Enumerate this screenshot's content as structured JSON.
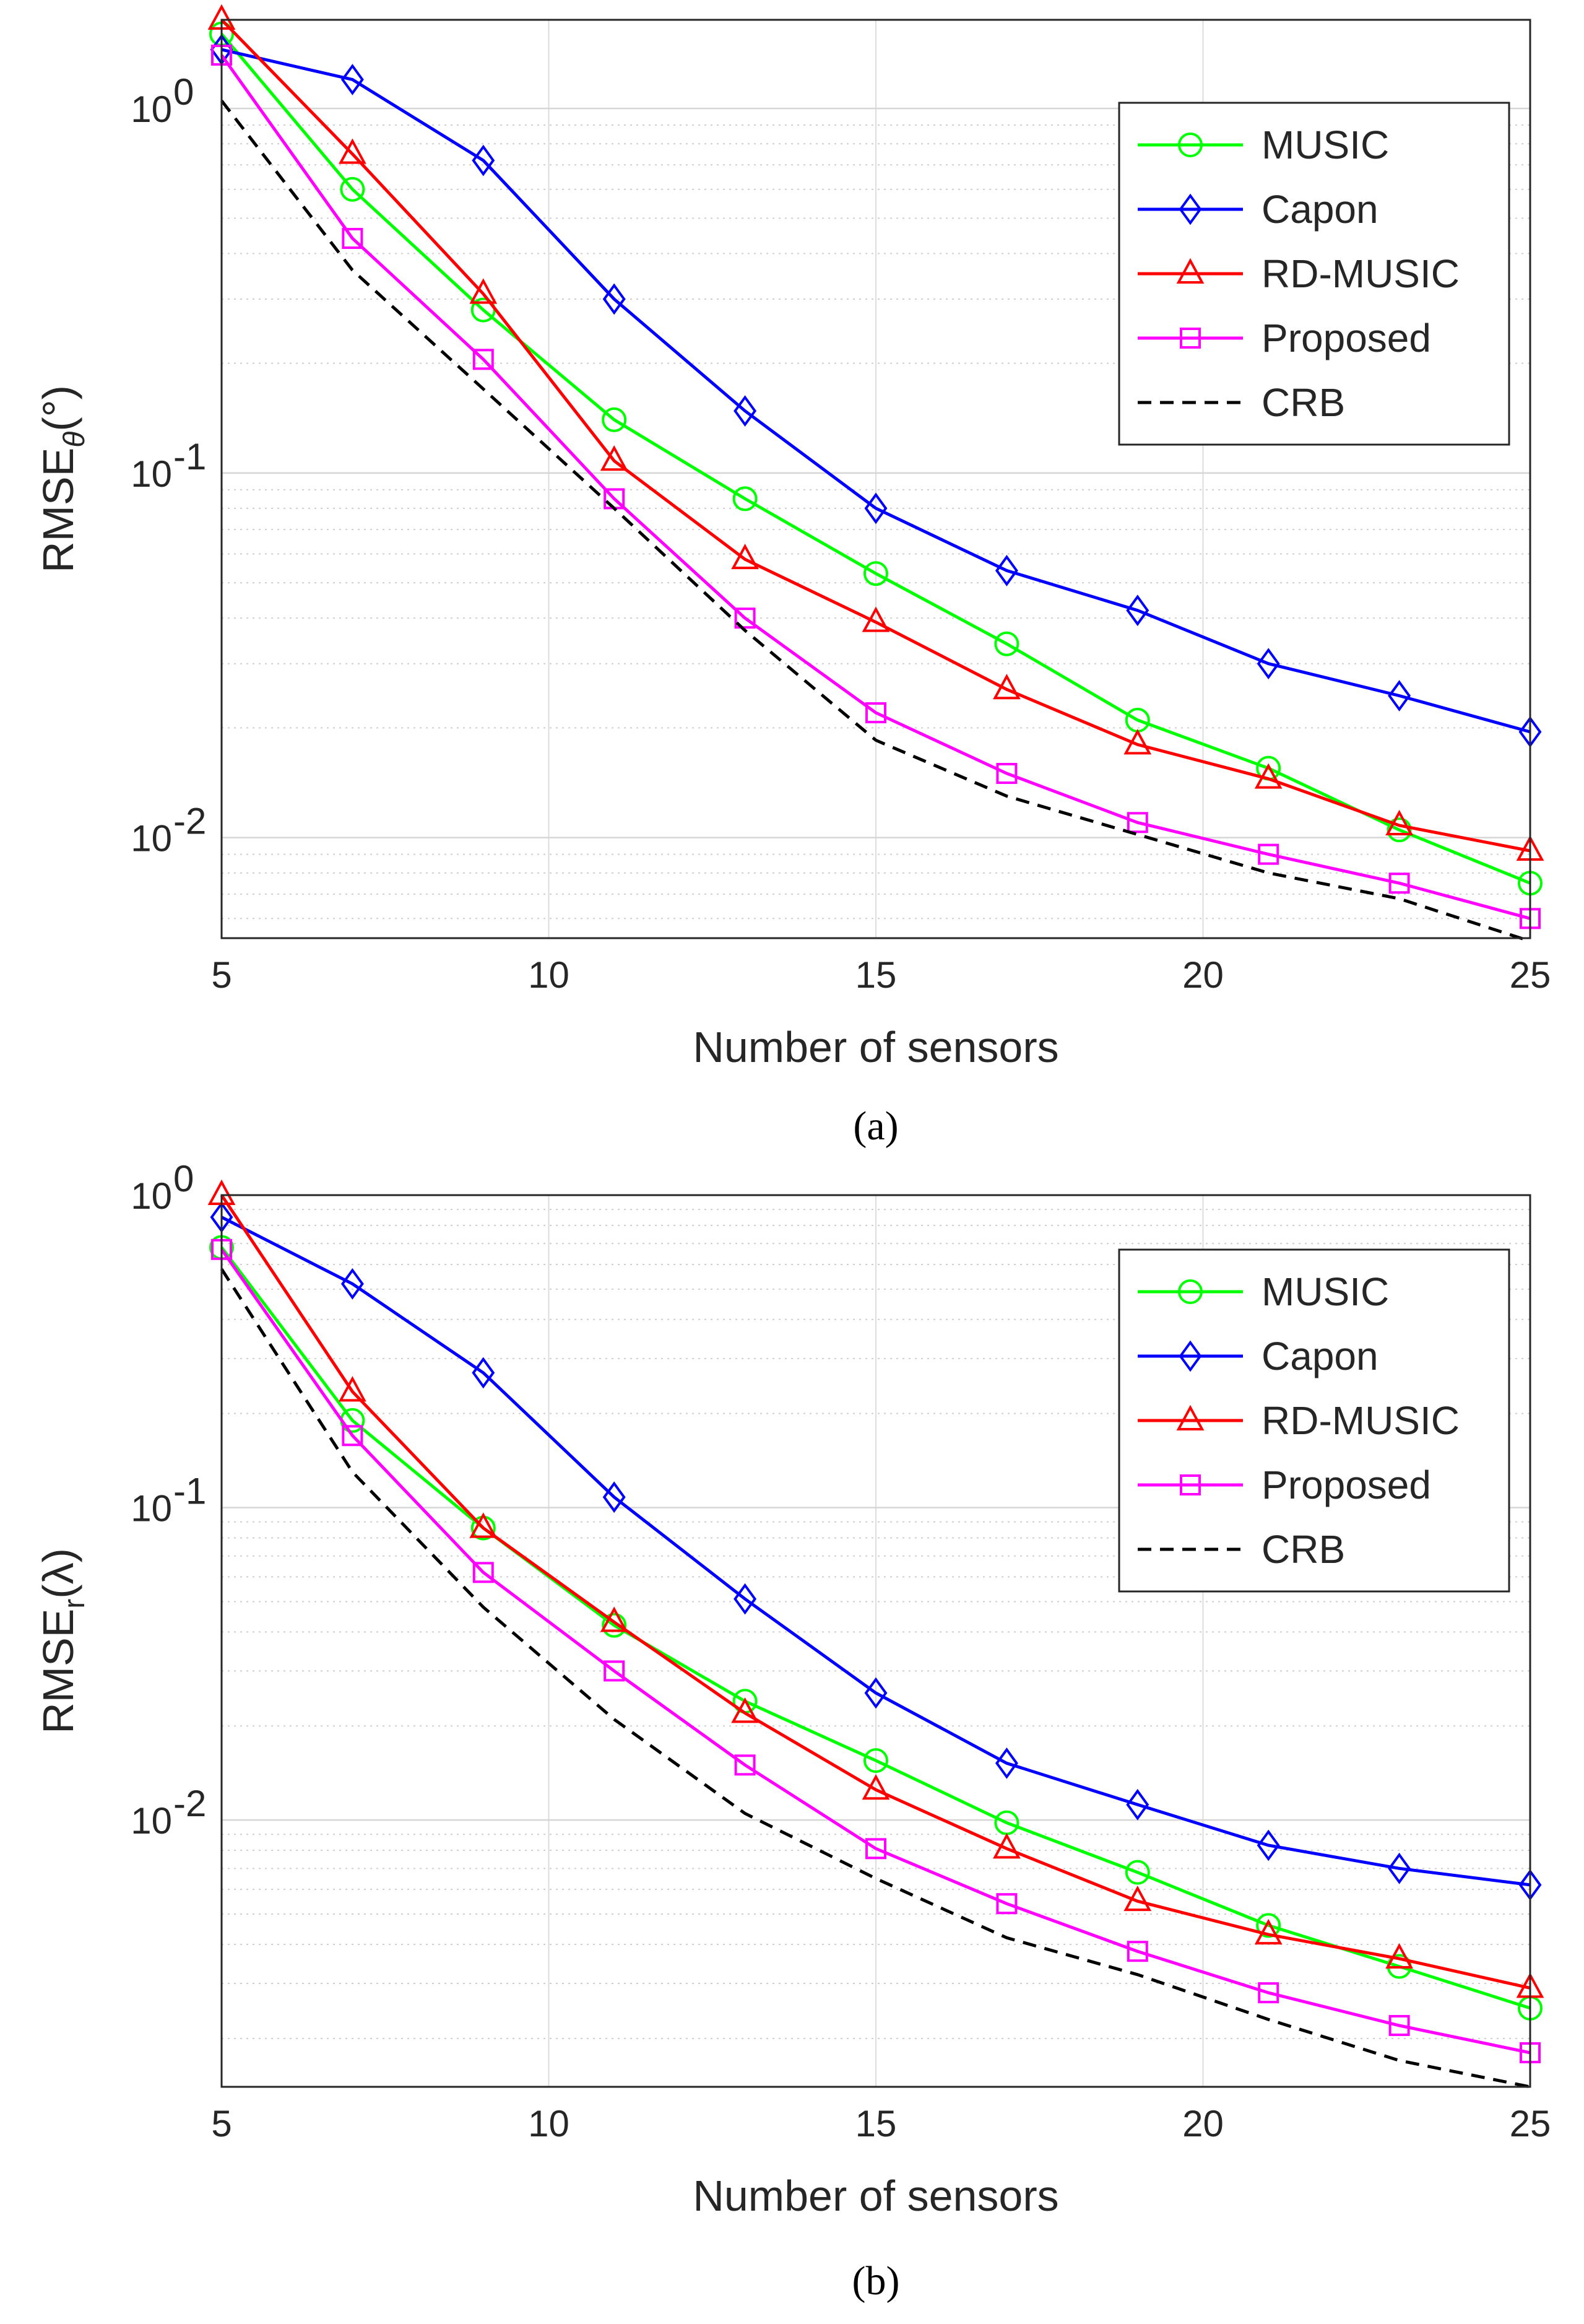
{
  "chart_data": [
    {
      "type": "line",
      "caption": "(a)",
      "xlabel": "Number of sensors",
      "ylabel_main": "RMSE",
      "ylabel_sub": "θ",
      "ylabel_unit": "(°)",
      "yscale": "log",
      "xlim": [
        5,
        25
      ],
      "ylim": [
        0.0053,
        1.75
      ],
      "xticks": [
        "5",
        "10",
        "15",
        "20",
        "25"
      ],
      "yticks": [
        {
          "base": "10",
          "exp": "-2"
        },
        {
          "base": "10",
          "exp": "-1"
        },
        {
          "base": "10",
          "exp": "0"
        }
      ],
      "grid": true,
      "legend_position": "top-right",
      "x": [
        5,
        7,
        9,
        11,
        13,
        15,
        17,
        19,
        21,
        23,
        25
      ],
      "series": [
        {
          "name": "MUSIC",
          "color": "#00ff00",
          "marker": "circle",
          "dash": "solid",
          "values": [
            1.6,
            0.6,
            0.28,
            0.14,
            0.085,
            0.053,
            0.034,
            0.021,
            0.0155,
            0.0105,
            0.0075
          ]
        },
        {
          "name": "Capon",
          "color": "#0000ff",
          "marker": "diamond",
          "dash": "solid",
          "values": [
            1.45,
            1.2,
            0.72,
            0.3,
            0.148,
            0.08,
            0.054,
            0.042,
            0.03,
            0.0245,
            0.0195
          ]
        },
        {
          "name": "RD-MUSIC",
          "color": "#ff0000",
          "marker": "triangle",
          "dash": "solid",
          "values": [
            1.75,
            0.75,
            0.31,
            0.108,
            0.058,
            0.039,
            0.0255,
            0.018,
            0.0145,
            0.0108,
            0.0092
          ]
        },
        {
          "name": "Proposed",
          "color": "#ff00ff",
          "marker": "square",
          "dash": "solid",
          "values": [
            1.4,
            0.44,
            0.205,
            0.085,
            0.04,
            0.022,
            0.015,
            0.011,
            0.009,
            0.0075,
            0.006
          ]
        },
        {
          "name": "CRB",
          "color": "#000000",
          "marker": "none",
          "dash": "dashed",
          "values": [
            1.05,
            0.36,
            0.17,
            0.08,
            0.037,
            0.0185,
            0.013,
            0.0102,
            0.008,
            0.0068,
            0.0052
          ]
        }
      ]
    },
    {
      "type": "line",
      "caption": "(b)",
      "xlabel": "Number of sensors",
      "ylabel_main": "RMSE",
      "ylabel_sub": "r",
      "ylabel_unit": "(λ)",
      "yscale": "log",
      "xlim": [
        5,
        25
      ],
      "ylim": [
        0.0014,
        1.0
      ],
      "xticks": [
        "5",
        "10",
        "15",
        "20",
        "25"
      ],
      "yticks": [
        {
          "base": "10",
          "exp": "-2"
        },
        {
          "base": "10",
          "exp": "-1"
        },
        {
          "base": "10",
          "exp": "0"
        }
      ],
      "grid": true,
      "legend_position": "top-right",
      "x": [
        5,
        7,
        9,
        11,
        13,
        15,
        17,
        19,
        21,
        23,
        25
      ],
      "series": [
        {
          "name": "MUSIC",
          "color": "#00ff00",
          "marker": "circle",
          "dash": "solid",
          "values": [
            0.68,
            0.19,
            0.086,
            0.042,
            0.024,
            0.0155,
            0.0098,
            0.0068,
            0.0046,
            0.0034,
            0.0025
          ]
        },
        {
          "name": "Capon",
          "color": "#0000ff",
          "marker": "diamond",
          "dash": "solid",
          "values": [
            0.85,
            0.52,
            0.27,
            0.108,
            0.051,
            0.0255,
            0.0152,
            0.0112,
            0.0083,
            0.007,
            0.0062
          ]
        },
        {
          "name": "RD-MUSIC",
          "color": "#ff0000",
          "marker": "triangle",
          "dash": "solid",
          "values": [
            1.0,
            0.235,
            0.086,
            0.043,
            0.022,
            0.0125,
            0.0081,
            0.0055,
            0.0043,
            0.0036,
            0.0029
          ]
        },
        {
          "name": "Proposed",
          "color": "#ff00ff",
          "marker": "square",
          "dash": "solid",
          "values": [
            0.67,
            0.17,
            0.062,
            0.03,
            0.015,
            0.0081,
            0.0054,
            0.0038,
            0.0028,
            0.0022,
            0.0018
          ]
        },
        {
          "name": "CRB",
          "color": "#000000",
          "marker": "none",
          "dash": "dashed",
          "values": [
            0.58,
            0.13,
            0.048,
            0.021,
            0.0105,
            0.0065,
            0.0042,
            0.0032,
            0.0023,
            0.0017,
            0.0014
          ]
        }
      ]
    }
  ]
}
